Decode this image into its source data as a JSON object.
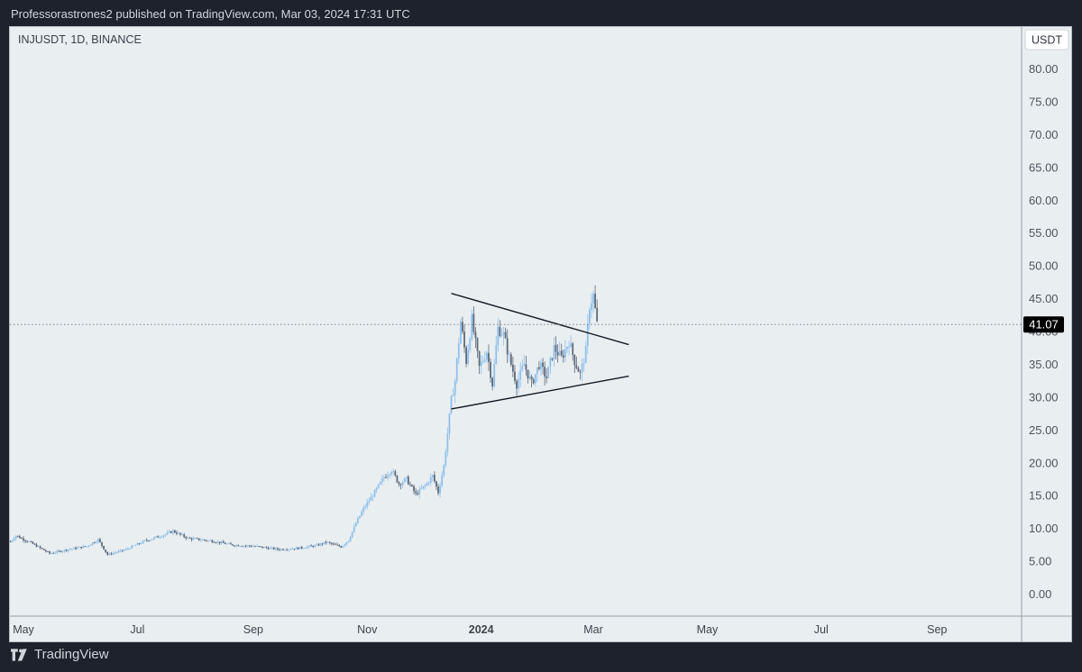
{
  "header": {
    "publish_text": "Professorastrones2 published on TradingView.com, Mar 03, 2024 17:31 UTC"
  },
  "symbol": {
    "text": "INJUSDT, 1D, BINANCE"
  },
  "footer": {
    "brand": "TradingView"
  },
  "colors": {
    "up": "#8fc0ea",
    "down": "#5f6a78",
    "trendline": "#161a22",
    "last_badge_bg": "#000000"
  },
  "chart_data": {
    "type": "candlestick",
    "title": "INJUSDT, 1D, BINANCE",
    "currency_label": "USDT",
    "y_ticks": [
      "80.00",
      "75.00",
      "70.00",
      "65.00",
      "60.00",
      "55.00",
      "50.00",
      "45.00",
      "40.00",
      "35.00",
      "30.00",
      "25.00",
      "20.00",
      "15.00",
      "10.00",
      "5.00",
      "0.00"
    ],
    "ylim": [
      -2.5,
      84
    ],
    "x_ticks": [
      {
        "label": "May",
        "date": "2023-05-01"
      },
      {
        "label": "Jul",
        "date": "2023-07-01"
      },
      {
        "label": "Sep",
        "date": "2023-09-01"
      },
      {
        "label": "Nov",
        "date": "2023-11-01"
      },
      {
        "label": "2024",
        "date": "2024-01-01",
        "bold": true
      },
      {
        "label": "Mar",
        "date": "2024-03-01"
      },
      {
        "label": "May",
        "date": "2024-05-01"
      },
      {
        "label": "Jul",
        "date": "2024-07-01"
      },
      {
        "label": "Sep",
        "date": "2024-09-01"
      }
    ],
    "last_price": "41.07",
    "last_price_value": 41.07,
    "price_path": [
      [
        "2023-04-24",
        8.0
      ],
      [
        "2023-04-27",
        8.9
      ],
      [
        "2023-05-05",
        7.8
      ],
      [
        "2023-05-15",
        6.2
      ],
      [
        "2023-05-25",
        6.8
      ],
      [
        "2023-06-04",
        7.3
      ],
      [
        "2023-06-10",
        8.3
      ],
      [
        "2023-06-15",
        6.0
      ],
      [
        "2023-06-25",
        6.8
      ],
      [
        "2023-07-05",
        8.1
      ],
      [
        "2023-07-15",
        9.0
      ],
      [
        "2023-07-20",
        9.6
      ],
      [
        "2023-07-28",
        8.5
      ],
      [
        "2023-08-10",
        8.1
      ],
      [
        "2023-08-20",
        7.5
      ],
      [
        "2023-09-01",
        7.3
      ],
      [
        "2023-09-15",
        6.8
      ],
      [
        "2023-09-25",
        7.0
      ],
      [
        "2023-10-05",
        7.4
      ],
      [
        "2023-10-10",
        7.9
      ],
      [
        "2023-10-18",
        7.2
      ],
      [
        "2023-10-22",
        8.2
      ],
      [
        "2023-10-26",
        10.8
      ],
      [
        "2023-10-30",
        13.0
      ],
      [
        "2023-11-05",
        15.5
      ],
      [
        "2023-11-10",
        17.8
      ],
      [
        "2023-11-14",
        18.9
      ],
      [
        "2023-11-18",
        16.8
      ],
      [
        "2023-11-22",
        17.5
      ],
      [
        "2023-11-27",
        15.2
      ],
      [
        "2023-12-02",
        16.5
      ],
      [
        "2023-12-06",
        18.0
      ],
      [
        "2023-12-09",
        15.5
      ],
      [
        "2023-12-12",
        19.5
      ],
      [
        "2023-12-14",
        24.5
      ],
      [
        "2023-12-16",
        29.5
      ],
      [
        "2023-12-18",
        32.5
      ],
      [
        "2023-12-21",
        41.5
      ],
      [
        "2023-12-24",
        35.5
      ],
      [
        "2023-12-27",
        41.8
      ],
      [
        "2023-12-31",
        34.5
      ],
      [
        "2024-01-04",
        37.0
      ],
      [
        "2024-01-07",
        32.0
      ],
      [
        "2024-01-10",
        40.5
      ],
      [
        "2024-01-13",
        39.5
      ],
      [
        "2024-01-16",
        36.0
      ],
      [
        "2024-01-20",
        32.0
      ],
      [
        "2024-01-24",
        35.0
      ],
      [
        "2024-01-28",
        32.0
      ],
      [
        "2024-02-01",
        35.0
      ],
      [
        "2024-02-05",
        33.0
      ],
      [
        "2024-02-09",
        37.5
      ],
      [
        "2024-02-13",
        36.0
      ],
      [
        "2024-02-17",
        38.5
      ],
      [
        "2024-02-20",
        35.5
      ],
      [
        "2024-02-23",
        33.5
      ],
      [
        "2024-02-26",
        37.0
      ],
      [
        "2024-02-28",
        44.0
      ],
      [
        "2024-03-01",
        45.5
      ],
      [
        "2024-03-03",
        41.07
      ]
    ],
    "trendlines": [
      {
        "name": "upper",
        "from": [
          "2023-12-16",
          45.8
        ],
        "to": [
          "2024-03-20",
          38.0
        ]
      },
      {
        "name": "lower",
        "from": [
          "2023-12-16",
          28.2
        ],
        "to": [
          "2024-03-20",
          33.2
        ]
      }
    ]
  }
}
